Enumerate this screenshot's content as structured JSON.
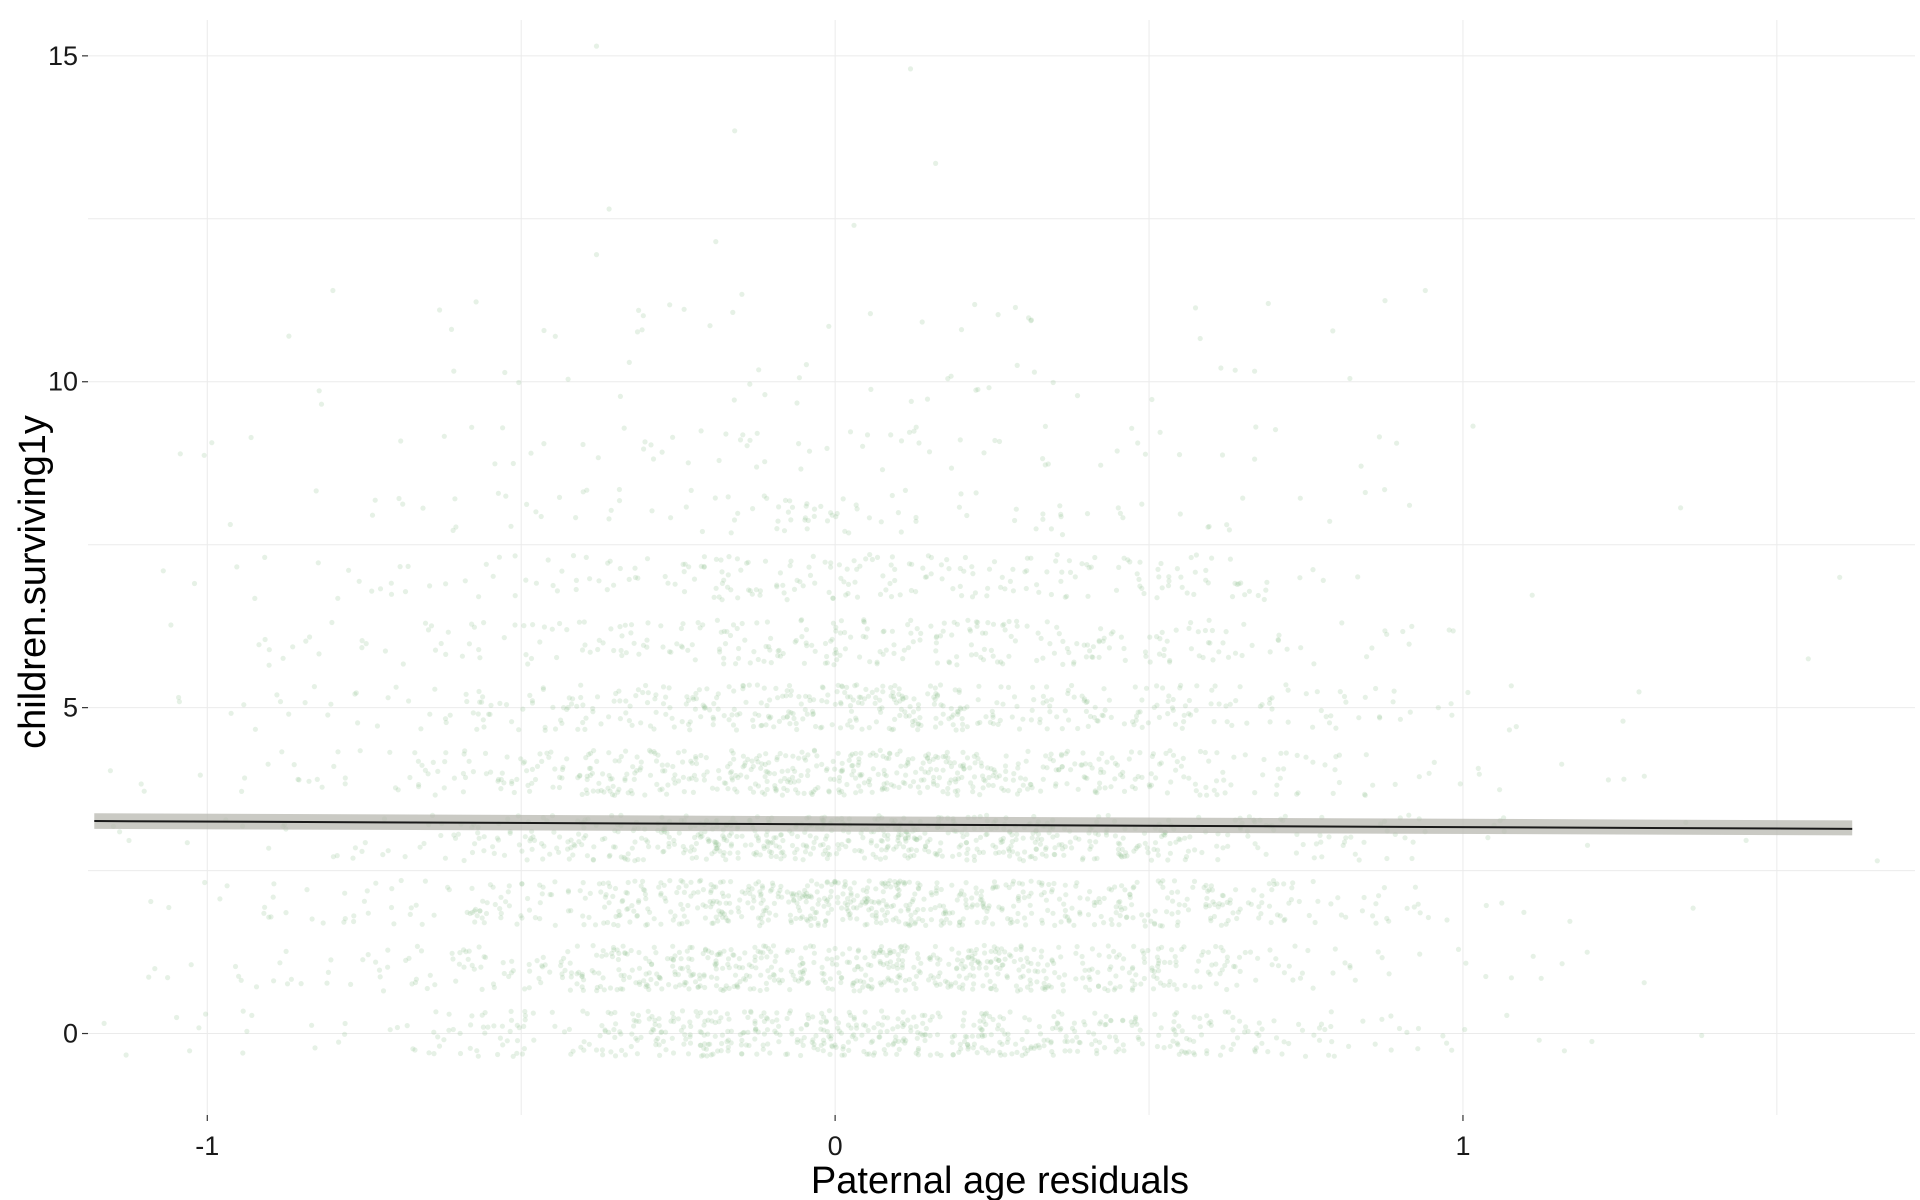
{
  "chart_data": {
    "type": "scatter",
    "title": "",
    "xlabel": "Paternal age residuals",
    "ylabel": "children.surviving1y",
    "xlim": [
      -1.19,
      1.72
    ],
    "ylim": [
      -1.25,
      15.55
    ],
    "x_ticks": [
      {
        "value": -1,
        "label": "-1"
      },
      {
        "value": 0,
        "label": "0"
      },
      {
        "value": 1,
        "label": "1"
      }
    ],
    "y_ticks": [
      {
        "value": 0,
        "label": "0"
      },
      {
        "value": 5,
        "label": "5"
      },
      {
        "value": 10,
        "label": "10"
      },
      {
        "value": 15,
        "label": "15"
      }
    ],
    "x_minor_gridlines": [
      -0.5,
      0.5,
      1.5
    ],
    "y_minor_gridlines": [
      2.5,
      7.5,
      12.5
    ],
    "grid": true,
    "legend": "none",
    "point_color": "#8fbf8f",
    "point_opacity": 0.22,
    "points_note_count": 4500,
    "outlier_points": [
      {
        "x": -0.38,
        "y": 15.15
      },
      {
        "x": 0.12,
        "y": 14.8
      },
      {
        "x": -0.16,
        "y": 13.85
      },
      {
        "x": 0.16,
        "y": 13.35
      },
      {
        "x": -0.36,
        "y": 12.65
      },
      {
        "x": -0.19,
        "y": 12.15
      },
      {
        "x": 0.03,
        "y": 12.4
      },
      {
        "x": -0.38,
        "y": 11.95
      },
      {
        "x": -0.8,
        "y": 11.4
      },
      {
        "x": -0.63,
        "y": 11.1
      },
      {
        "x": 0.69,
        "y": 11.2
      },
      {
        "x": 0.94,
        "y": 11.4
      },
      {
        "x": -0.87,
        "y": 10.7
      },
      {
        "x": -0.01,
        "y": 10.85
      },
      {
        "x": 0.29,
        "y": 10.25
      },
      {
        "x": 0.82,
        "y": 10.05
      },
      {
        "x": -1.07,
        "y": 7.1
      },
      {
        "x": 1.6,
        "y": 7.0
      },
      {
        "x": 1.55,
        "y": 5.75
      },
      {
        "x": 1.66,
        "y": 2.65
      }
    ],
    "fit_line": {
      "x": [
        -1.18,
        1.62
      ],
      "y": [
        3.26,
        3.14
      ],
      "ci_lower": [
        3.14,
        3.04
      ],
      "ci_upper": [
        3.38,
        3.27
      ],
      "line_color": "#1a1a1a",
      "ci_color": "#b8b8b0"
    }
  }
}
